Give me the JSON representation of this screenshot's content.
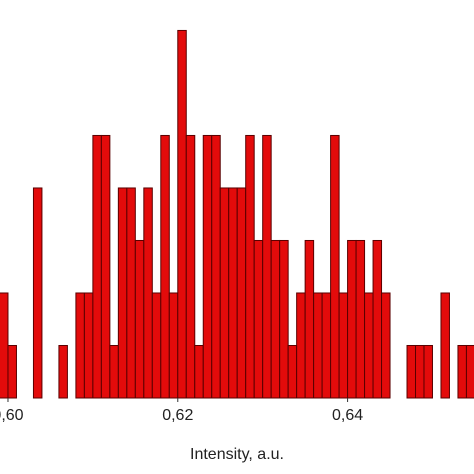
{
  "chart_data": {
    "type": "histogram",
    "x_label": "Intensity, a.u.",
    "bins": [
      0.599,
      0.6,
      0.601,
      0.602,
      0.603,
      0.604,
      0.605,
      0.606,
      0.607,
      0.608,
      0.609,
      0.61,
      0.611,
      0.612,
      0.613,
      0.614,
      0.615,
      0.616,
      0.617,
      0.618,
      0.619,
      0.62,
      0.621,
      0.622,
      0.623,
      0.624,
      0.625,
      0.626,
      0.627,
      0.628,
      0.629,
      0.63,
      0.631,
      0.632,
      0.633,
      0.634,
      0.635,
      0.636,
      0.637,
      0.638,
      0.639,
      0.64,
      0.641,
      0.642,
      0.643,
      0.644,
      0.645,
      0.646,
      0.647,
      0.648,
      0.649,
      0.65,
      0.651,
      0.652,
      0.653,
      0.654,
      0.655
    ],
    "values": [
      2,
      1,
      0,
      0,
      4,
      0,
      0,
      1,
      0,
      2,
      2,
      5,
      5,
      1,
      4,
      4,
      3,
      4,
      2,
      5,
      2,
      7,
      5,
      1,
      5,
      5,
      4,
      4,
      4,
      5,
      3,
      5,
      3,
      3,
      1,
      2,
      3,
      2,
      2,
      5,
      2,
      3,
      3,
      2,
      3,
      2,
      0,
      0,
      1,
      1,
      1,
      0,
      2,
      0,
      1,
      1
    ],
    "color": "#e30b0b",
    "edge_color": "#5a0000",
    "xlim": [
      0.59906,
      0.65489
    ],
    "ylim": [
      0,
      7.58
    ],
    "xticks": [
      {
        "value": 0.6,
        "label": "0,60"
      },
      {
        "value": 0.62,
        "label": "0,62"
      },
      {
        "value": 0.64,
        "label": "0,64"
      }
    ]
  }
}
